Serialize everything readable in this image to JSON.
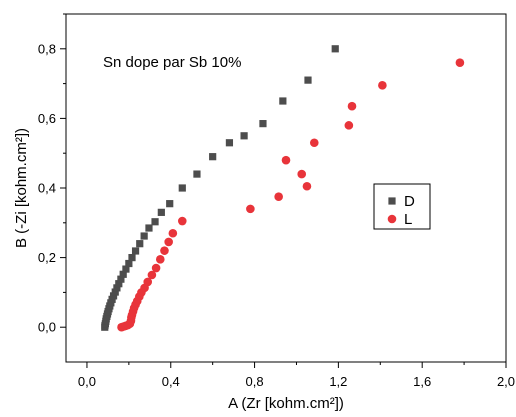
{
  "chart_data": {
    "type": "scatter",
    "title": "",
    "annotation": "Sn dope par Sb 10%",
    "xlabel": "A (Zr [kohm.cm²])",
    "ylabel": "B (-Zi [kohm.cm²])",
    "xlim": [
      -0.1,
      2.0
    ],
    "ylim": [
      -0.1,
      0.9
    ],
    "xticks": [
      0.0,
      0.4,
      0.8,
      1.2,
      1.6,
      2.0
    ],
    "xtick_labels": [
      "0,0",
      "0,4",
      "0,8",
      "1,2",
      "1,6",
      "2,0"
    ],
    "yticks": [
      0.0,
      0.2,
      0.4,
      0.6,
      0.8
    ],
    "ytick_labels": [
      "0,0",
      "0,2",
      "0,4",
      "0,6",
      "0,8"
    ],
    "grid": false,
    "legend_position": "right",
    "series": [
      {
        "name": "D",
        "color": "#4d4d4d",
        "marker": "square",
        "points": [
          [
            0.085,
            0.0
          ],
          [
            0.086,
            0.005
          ],
          [
            0.088,
            0.01
          ],
          [
            0.09,
            0.017
          ],
          [
            0.092,
            0.024
          ],
          [
            0.095,
            0.031
          ],
          [
            0.098,
            0.038
          ],
          [
            0.101,
            0.045
          ],
          [
            0.105,
            0.053
          ],
          [
            0.109,
            0.061
          ],
          [
            0.114,
            0.07
          ],
          [
            0.12,
            0.08
          ],
          [
            0.127,
            0.09
          ],
          [
            0.135,
            0.101
          ],
          [
            0.143,
            0.113
          ],
          [
            0.152,
            0.125
          ],
          [
            0.162,
            0.138
          ],
          [
            0.173,
            0.152
          ],
          [
            0.186,
            0.167
          ],
          [
            0.2,
            0.183
          ],
          [
            0.215,
            0.2
          ],
          [
            0.232,
            0.219
          ],
          [
            0.252,
            0.24
          ],
          [
            0.273,
            0.262
          ],
          [
            0.296,
            0.285
          ],
          [
            0.325,
            0.303
          ],
          [
            0.355,
            0.33
          ],
          [
            0.395,
            0.355
          ],
          [
            0.455,
            0.4
          ],
          [
            0.525,
            0.44
          ],
          [
            0.6,
            0.49
          ],
          [
            0.68,
            0.53
          ],
          [
            0.75,
            0.55
          ],
          [
            0.84,
            0.585
          ],
          [
            0.935,
            0.65
          ],
          [
            1.055,
            0.71
          ],
          [
            1.185,
            0.8
          ]
        ]
      },
      {
        "name": "L",
        "color": "#e8343a",
        "marker": "circle",
        "points": [
          [
            0.165,
            0.0
          ],
          [
            0.175,
            0.002
          ],
          [
            0.185,
            0.004
          ],
          [
            0.195,
            0.006
          ],
          [
            0.205,
            0.01
          ],
          [
            0.21,
            0.018
          ],
          [
            0.212,
            0.028
          ],
          [
            0.215,
            0.035
          ],
          [
            0.22,
            0.045
          ],
          [
            0.225,
            0.055
          ],
          [
            0.232,
            0.065
          ],
          [
            0.24,
            0.075
          ],
          [
            0.25,
            0.088
          ],
          [
            0.26,
            0.1
          ],
          [
            0.275,
            0.113
          ],
          [
            0.29,
            0.13
          ],
          [
            0.31,
            0.15
          ],
          [
            0.33,
            0.17
          ],
          [
            0.35,
            0.195
          ],
          [
            0.37,
            0.22
          ],
          [
            0.39,
            0.245
          ],
          [
            0.41,
            0.27
          ],
          [
            0.455,
            0.305
          ],
          [
            0.78,
            0.34
          ],
          [
            0.915,
            0.375
          ],
          [
            0.95,
            0.48
          ],
          [
            1.025,
            0.44
          ],
          [
            1.05,
            0.405
          ],
          [
            1.085,
            0.53
          ],
          [
            1.25,
            0.58
          ],
          [
            1.265,
            0.635
          ],
          [
            1.41,
            0.695
          ],
          [
            1.78,
            0.76
          ]
        ]
      }
    ]
  }
}
